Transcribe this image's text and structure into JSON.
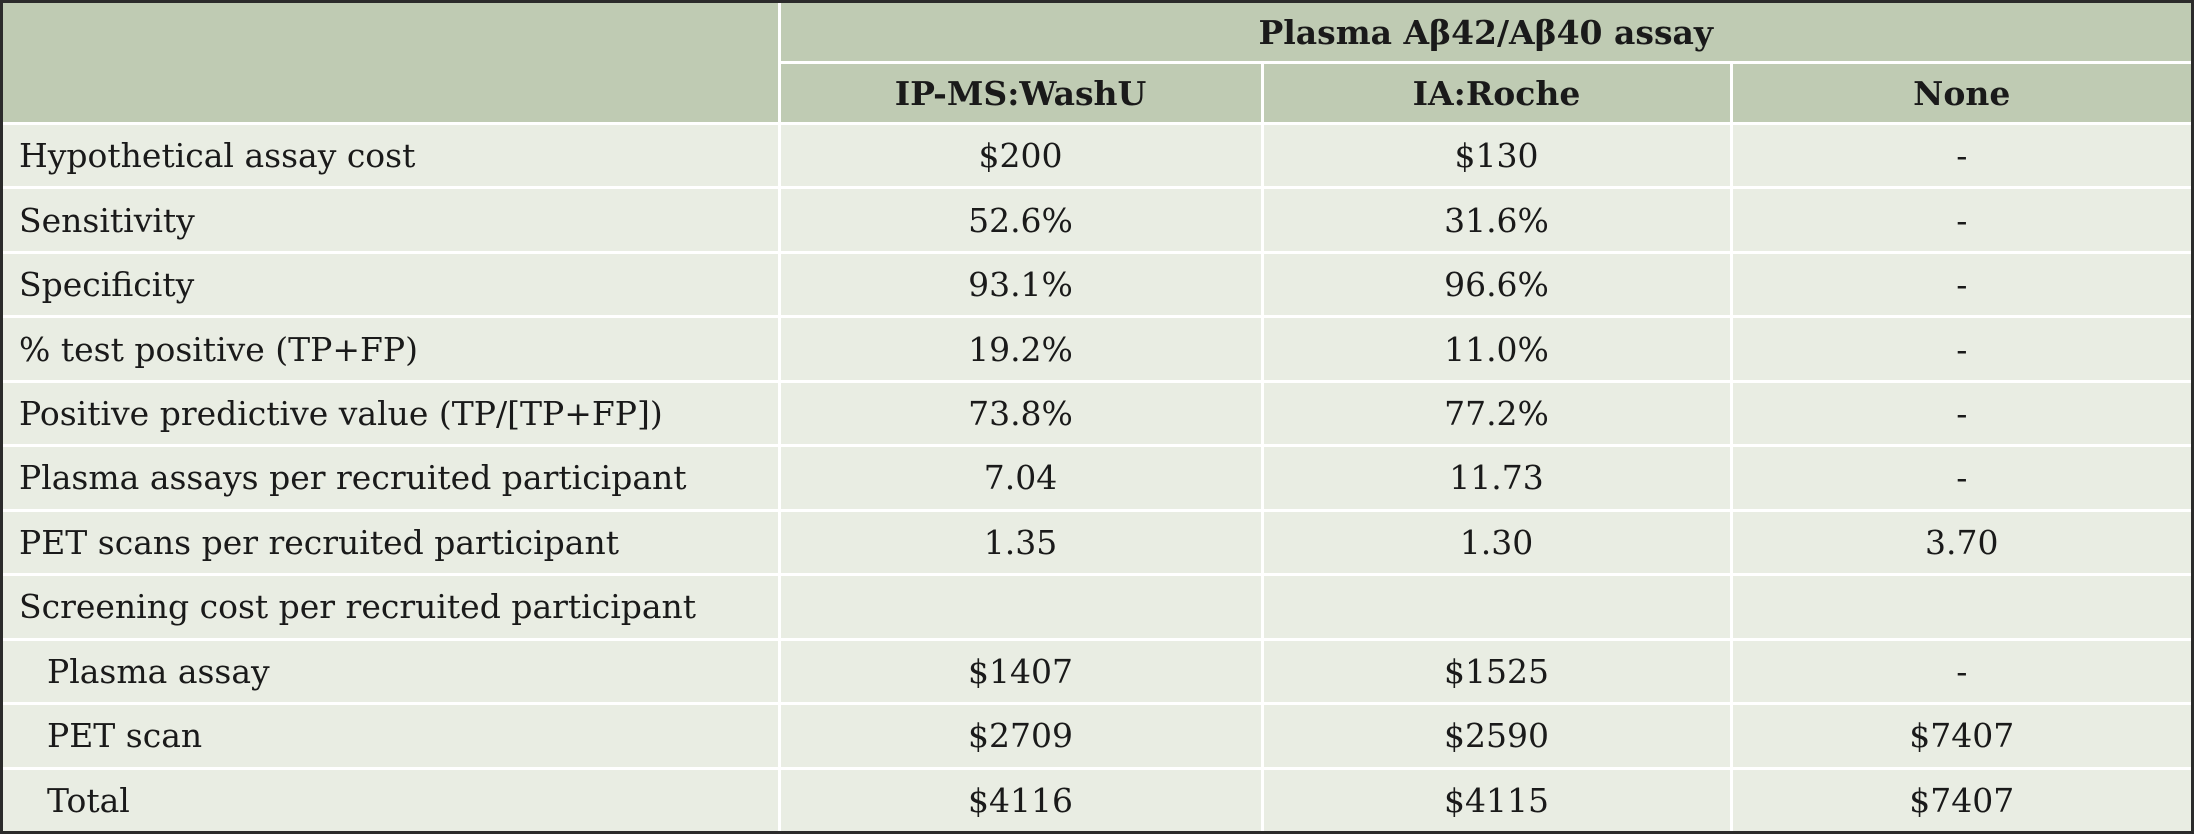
{
  "header": {
    "group_title": "Plasma Aβ42/Aβ40 assay",
    "columns": [
      "IP-MS:WashU",
      "IA:Roche",
      "None"
    ]
  },
  "rows": [
    {
      "label": "Hypothetical assay cost",
      "values": [
        "$200",
        "$130",
        "-"
      ]
    },
    {
      "label": "Sensitivity",
      "values": [
        "52.6%",
        "31.6%",
        "-"
      ]
    },
    {
      "label": "Specificity",
      "values": [
        "93.1%",
        "96.6%",
        "-"
      ]
    },
    {
      "label": "% test positive (TP+FP)",
      "values": [
        "19.2%",
        "11.0%",
        "-"
      ]
    },
    {
      "label": "Positive predictive value (TP/[TP+FP])",
      "values": [
        "73.8%",
        "77.2%",
        "-"
      ]
    },
    {
      "label": "Plasma assays per recruited participant",
      "values": [
        "7.04",
        "11.73",
        "-"
      ]
    },
    {
      "label": "PET scans per recruited participant",
      "values": [
        "1.35",
        "1.30",
        "3.70"
      ]
    },
    {
      "label": "Screening cost per recruited participant",
      "values": [
        "",
        "",
        ""
      ]
    },
    {
      "label": "Plasma assay",
      "values": [
        "$1407",
        "$1525",
        "-"
      ]
    },
    {
      "label": "PET scan",
      "values": [
        "$2709",
        "$2590",
        "$7407"
      ]
    },
    {
      "label": "Total",
      "values": [
        "$4116",
        "$4115",
        "$7407"
      ]
    }
  ],
  "colors": {
    "header_bg": "#bfcbb3",
    "body_bg": "#e9ede3",
    "grid_line": "#ffffff",
    "frame": "#2b2b2b"
  }
}
